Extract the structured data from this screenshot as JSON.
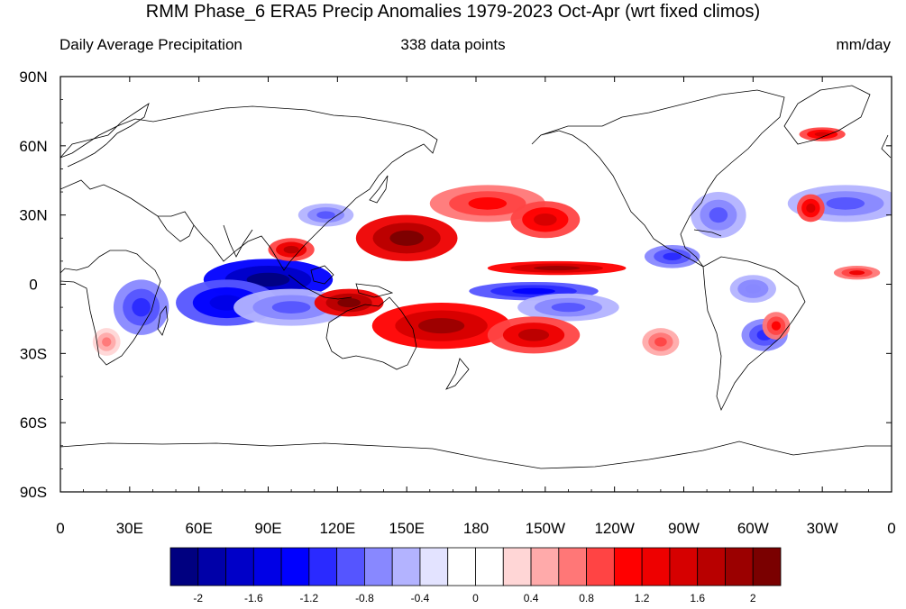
{
  "title": "RMM Phase_6 ERA5 Precip Anomalies 1979-2023 Oct-Apr (wrt fixed climos)",
  "subtitle_left": "Daily Average Precipitation",
  "subtitle_center": "338 data points",
  "subtitle_right": "mm/day",
  "map": {
    "lon_range": [
      0,
      360
    ],
    "lat_range": [
      -90,
      90
    ],
    "lat_ticks": [
      {
        "value": 90,
        "label": "90N"
      },
      {
        "value": 60,
        "label": "60N"
      },
      {
        "value": 30,
        "label": "30N"
      },
      {
        "value": 0,
        "label": "0"
      },
      {
        "value": -30,
        "label": "30S"
      },
      {
        "value": -60,
        "label": "60S"
      },
      {
        "value": -90,
        "label": "90S"
      }
    ],
    "lon_ticks": [
      {
        "value": 0,
        "label": "0"
      },
      {
        "value": 30,
        "label": "30E"
      },
      {
        "value": 60,
        "label": "60E"
      },
      {
        "value": 90,
        "label": "90E"
      },
      {
        "value": 120,
        "label": "120E"
      },
      {
        "value": 150,
        "label": "150E"
      },
      {
        "value": 180,
        "label": "180"
      },
      {
        "value": 210,
        "label": "150W"
      },
      {
        "value": 240,
        "label": "120W"
      },
      {
        "value": 270,
        "label": "90W"
      },
      {
        "value": 300,
        "label": "60W"
      },
      {
        "value": 330,
        "label": "30W"
      },
      {
        "value": 360,
        "label": "0"
      }
    ],
    "anomaly_features": [
      {
        "lon": 90,
        "lat": 2,
        "rx": 28,
        "ry": 9,
        "value": -2.2
      },
      {
        "lon": 72,
        "lat": -8,
        "rx": 22,
        "ry": 10,
        "value": -1.6
      },
      {
        "lon": 35,
        "lat": -10,
        "rx": 12,
        "ry": 12,
        "value": -1.2
      },
      {
        "lon": 100,
        "lat": -10,
        "rx": 25,
        "ry": 8,
        "value": -1.0
      },
      {
        "lon": 115,
        "lat": 30,
        "rx": 12,
        "ry": 5,
        "value": -0.9
      },
      {
        "lon": 205,
        "lat": -3,
        "rx": 28,
        "ry": 4,
        "value": -1.4
      },
      {
        "lon": 220,
        "lat": -10,
        "rx": 22,
        "ry": 6,
        "value": -1.0
      },
      {
        "lon": 265,
        "lat": 12,
        "rx": 12,
        "ry": 5,
        "value": -1.2
      },
      {
        "lon": 285,
        "lat": 30,
        "rx": 12,
        "ry": 10,
        "value": -1.0
      },
      {
        "lon": 340,
        "lat": 35,
        "rx": 25,
        "ry": 8,
        "value": -1.0
      },
      {
        "lon": 305,
        "lat": -22,
        "rx": 10,
        "ry": 7,
        "value": -1.2
      },
      {
        "lon": 300,
        "lat": -2,
        "rx": 10,
        "ry": 6,
        "value": -0.8
      },
      {
        "lon": 150,
        "lat": 20,
        "rx": 22,
        "ry": 10,
        "value": 2.2
      },
      {
        "lon": 125,
        "lat": -8,
        "rx": 15,
        "ry": 6,
        "value": 2.0
      },
      {
        "lon": 165,
        "lat": -18,
        "rx": 30,
        "ry": 10,
        "value": 1.8
      },
      {
        "lon": 205,
        "lat": -22,
        "rx": 20,
        "ry": 8,
        "value": 1.6
      },
      {
        "lon": 185,
        "lat": 35,
        "rx": 25,
        "ry": 8,
        "value": 1.0
      },
      {
        "lon": 210,
        "lat": 28,
        "rx": 15,
        "ry": 8,
        "value": 1.4
      },
      {
        "lon": 215,
        "lat": 7,
        "rx": 30,
        "ry": 3,
        "value": 1.8
      },
      {
        "lon": 100,
        "lat": 15,
        "rx": 10,
        "ry": 5,
        "value": 1.6
      },
      {
        "lon": 325,
        "lat": 33,
        "rx": 6,
        "ry": 6,
        "value": 1.4
      },
      {
        "lon": 345,
        "lat": 5,
        "rx": 10,
        "ry": 3,
        "value": 1.2
      },
      {
        "lon": 330,
        "lat": 65,
        "rx": 10,
        "ry": 3,
        "value": 1.4
      },
      {
        "lon": 310,
        "lat": -18,
        "rx": 6,
        "ry": 6,
        "value": 1.0
      },
      {
        "lon": 260,
        "lat": -25,
        "rx": 8,
        "ry": 6,
        "value": 0.8
      },
      {
        "lon": 20,
        "lat": -25,
        "rx": 6,
        "ry": 6,
        "value": 0.6
      }
    ]
  },
  "colorbar": {
    "levels": [
      -2,
      -1.8,
      -1.6,
      -1.4,
      -1.2,
      -1.0,
      -0.8,
      -0.6,
      -0.4,
      -0.2,
      0,
      0.2,
      0.4,
      0.6,
      0.8,
      1.0,
      1.2,
      1.4,
      1.6,
      1.8,
      2
    ],
    "colors": [
      "#000080",
      "#0000a8",
      "#0000c8",
      "#0000e6",
      "#0000ff",
      "#2a2aff",
      "#5555ff",
      "#8888ff",
      "#b3b3ff",
      "#e3e3ff",
      "#ffffff",
      "#ffffff",
      "#ffd6d6",
      "#ffaaaa",
      "#ff7777",
      "#ff4444",
      "#ff0000",
      "#ee0000",
      "#d60000",
      "#b80000",
      "#9b0000",
      "#7a0000"
    ],
    "tick_labels": [
      {
        "value": -2,
        "label": "-2"
      },
      {
        "value": -1.6,
        "label": "-1.6"
      },
      {
        "value": -1.2,
        "label": "-1.2"
      },
      {
        "value": -0.8,
        "label": "-0.8"
      },
      {
        "value": -0.4,
        "label": "-0.4"
      },
      {
        "value": 0,
        "label": "0"
      },
      {
        "value": 0.4,
        "label": "0.4"
      },
      {
        "value": 0.8,
        "label": "0.8"
      },
      {
        "value": 1.2,
        "label": "1.2"
      },
      {
        "value": 1.6,
        "label": "1.6"
      },
      {
        "value": 2,
        "label": "2"
      }
    ]
  }
}
